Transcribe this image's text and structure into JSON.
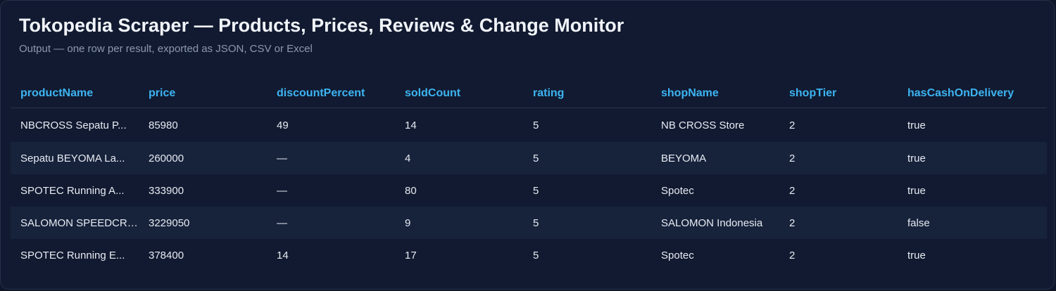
{
  "header": {
    "title": "Tokopedia Scraper — Products, Prices, Reviews & Change Monitor",
    "subtitle": "Output — one row per result, exported as JSON, CSV or Excel"
  },
  "table": {
    "columns": [
      "productName",
      "price",
      "discountPercent",
      "soldCount",
      "rating",
      "shopName",
      "shopTier",
      "hasCashOnDelivery"
    ],
    "rows": [
      [
        "NBCROSS Sepatu P...",
        "85980",
        "49",
        "14",
        "5",
        "NB CROSS Store",
        "2",
        "true"
      ],
      [
        "Sepatu BEYOMA La...",
        "260000",
        "—",
        "4",
        "5",
        "BEYOMA",
        "2",
        "true"
      ],
      [
        "SPOTEC Running A...",
        "333900",
        "—",
        "80",
        "5",
        "Spotec",
        "2",
        "true"
      ],
      [
        "SALOMON SPEEDCRO...",
        "3229050",
        "—",
        "9",
        "5",
        "SALOMON Indonesia",
        "2",
        "false"
      ],
      [
        "SPOTEC Running E...",
        "378400",
        "14",
        "17",
        "5",
        "Spotec",
        "2",
        "true"
      ]
    ]
  }
}
